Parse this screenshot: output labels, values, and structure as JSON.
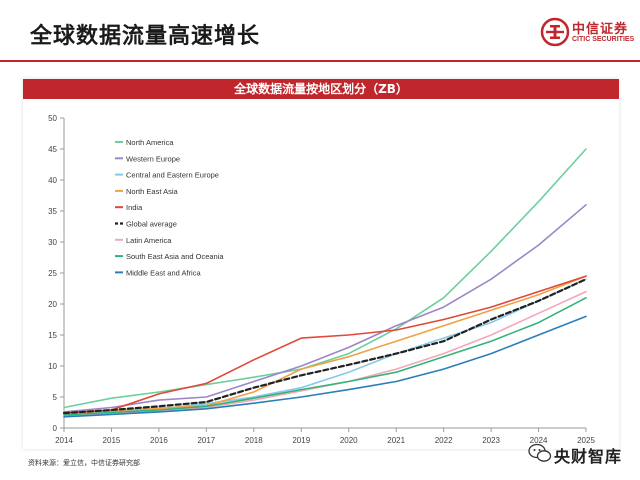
{
  "page": {
    "title": "全球数据流量高速增长",
    "source": "资料来源：爱立信，中信证券研究部",
    "logo": {
      "name": "中信证券",
      "subtitle": "CITIC SECURITIES"
    },
    "watermark": "央财智库",
    "accent": "#c0272d"
  },
  "chart_data": {
    "type": "line",
    "title": "全球数据流量按地区划分（ZB）",
    "xlabel": "",
    "ylabel": "",
    "x": [
      "2014",
      "2015",
      "2016",
      "2017",
      "2018",
      "2019",
      "2020",
      "2021",
      "2022",
      "2023",
      "2024",
      "2025"
    ],
    "ylim": [
      0,
      50
    ],
    "yticks": [
      0,
      5,
      10,
      15,
      20,
      25,
      30,
      35,
      40,
      45,
      50
    ],
    "grid": false,
    "legend_position": "top-left",
    "series": [
      {
        "name": "North America",
        "color": "#6ccf9c",
        "dash": false,
        "values": [
          3.3,
          4.8,
          5.8,
          7.0,
          8.2,
          9.5,
          12.0,
          16.0,
          21.0,
          28.5,
          36.5,
          45.0
        ]
      },
      {
        "name": "Western Europe",
        "color": "#9b87c8",
        "dash": false,
        "values": [
          2.6,
          3.3,
          4.5,
          5.0,
          7.5,
          10.0,
          13.0,
          16.5,
          19.5,
          24.0,
          29.5,
          36.0
        ]
      },
      {
        "name": "Central and Eastern Europe",
        "color": "#87c9e8",
        "dash": false,
        "values": [
          2.2,
          2.7,
          3.1,
          3.9,
          5.0,
          6.5,
          9.0,
          12.0,
          14.5,
          17.0,
          20.5,
          24.0
        ]
      },
      {
        "name": "North East Asia",
        "color": "#f0a045",
        "dash": false,
        "values": [
          2.3,
          2.8,
          3.2,
          3.6,
          5.8,
          9.5,
          11.5,
          14.0,
          16.5,
          19.0,
          21.5,
          24.5
        ]
      },
      {
        "name": "India",
        "color": "#e04838",
        "dash": false,
        "values": [
          2.4,
          2.9,
          5.5,
          7.2,
          11.0,
          14.5,
          15.0,
          15.8,
          17.5,
          19.5,
          22.0,
          24.5
        ]
      },
      {
        "name": "Global average",
        "color": "#222222",
        "dash": true,
        "values": [
          2.4,
          2.9,
          3.5,
          4.2,
          6.5,
          8.5,
          10.2,
          12.0,
          14.0,
          17.5,
          20.5,
          24.0
        ]
      },
      {
        "name": "Latin America",
        "color": "#f2a8b8",
        "dash": false,
        "values": [
          2.0,
          2.4,
          2.8,
          3.3,
          4.5,
          6.0,
          7.5,
          9.5,
          12.0,
          15.0,
          18.5,
          22.0
        ]
      },
      {
        "name": "South East Asia and Oceania",
        "color": "#33b37a",
        "dash": false,
        "values": [
          2.1,
          2.5,
          2.9,
          3.5,
          4.8,
          6.2,
          7.5,
          9.0,
          11.5,
          14.0,
          17.0,
          21.0
        ]
      },
      {
        "name": "Middle East and Africa",
        "color": "#2a7fb8",
        "dash": false,
        "values": [
          1.8,
          2.2,
          2.6,
          3.1,
          4.0,
          5.0,
          6.2,
          7.5,
          9.5,
          12.0,
          15.0,
          18.0
        ]
      }
    ]
  }
}
